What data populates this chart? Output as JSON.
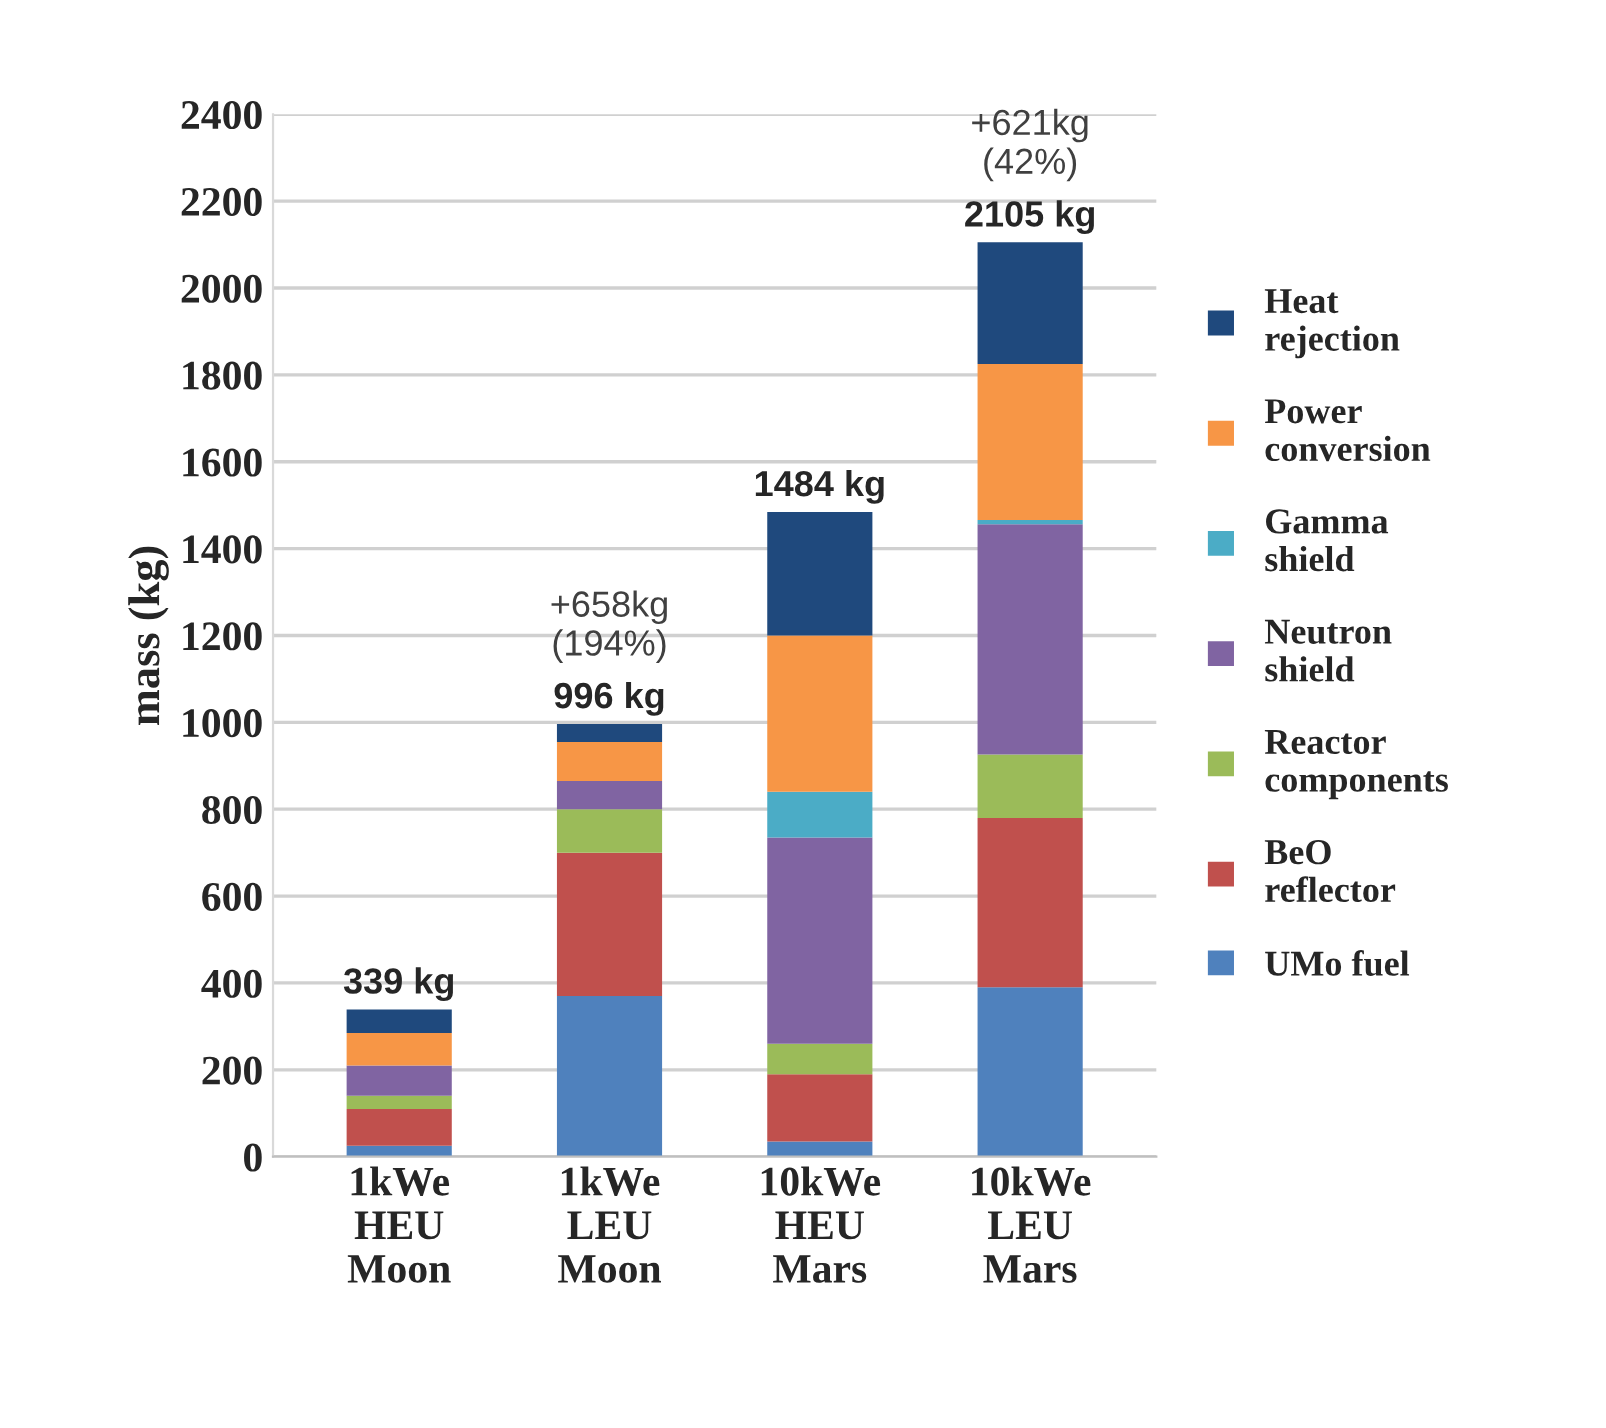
{
  "chart_data": {
    "type": "bar",
    "stacked": true,
    "ylabel": "mass (kg)",
    "categories": [
      "1kWe\nHEU\nMoon",
      "1kWe\nLEU\nMoon",
      "10kWe\nHEU\nMars",
      "10kWe\nLEU\nMars"
    ],
    "series": [
      {
        "name": "UMo fuel",
        "color": "#4f81bd",
        "values": [
          25,
          370,
          35,
          390
        ]
      },
      {
        "name": "BeO\nreflector",
        "color": "#c0504d",
        "values": [
          85,
          330,
          155,
          390
        ]
      },
      {
        "name": "Reactor\ncomponents",
        "color": "#9bbb59",
        "values": [
          30,
          100,
          70,
          146
        ]
      },
      {
        "name": "Neutron\nshield",
        "color": "#8064a2",
        "values": [
          70,
          65,
          475,
          530
        ]
      },
      {
        "name": "Gamma\nshield",
        "color": "#4bacc6",
        "values": [
          0,
          0,
          105,
          10
        ]
      },
      {
        "name": "Power\nconversion",
        "color": "#f79646",
        "values": [
          75,
          90,
          360,
          359
        ]
      },
      {
        "name": "Heat\nrejection",
        "color": "#1f497d",
        "values": [
          54,
          41,
          284,
          280
        ]
      }
    ],
    "totals": [
      "339 kg",
      "996 kg",
      "1484 kg",
      "2105 kg"
    ],
    "annotations": [
      {
        "text": "+658kg\n(194%)",
        "x": "1kWe\nLEU\nMoon",
        "y": 996
      },
      {
        "text": "+621kg\n(42%)",
        "x": "10kWe\nLEU\nMars",
        "y": 2105
      }
    ],
    "ylim": [
      0,
      2400
    ],
    "yticks": [
      0,
      200,
      400,
      600,
      800,
      1000,
      1200,
      1400,
      1600,
      1800,
      2000,
      2200,
      2400
    ],
    "grid": "y",
    "legend": "right"
  }
}
